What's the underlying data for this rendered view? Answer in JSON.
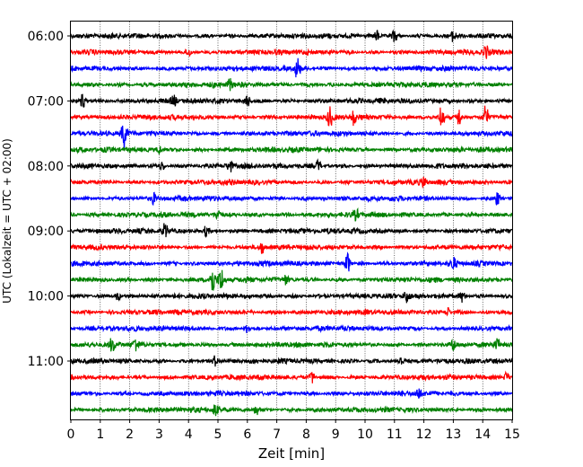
{
  "chart_data": {
    "type": "line",
    "title": "",
    "xlabel": "Zeit  [min]",
    "ylabel": "UTC (Lokalzeit = UTC + 02:00)",
    "xlim": [
      0,
      15
    ],
    "x_ticks": [
      "0",
      "1",
      "2",
      "3",
      "4",
      "5",
      "6",
      "7",
      "8",
      "9",
      "10",
      "11",
      "12",
      "13",
      "14",
      "15"
    ],
    "y_tick_labels": [
      "06:00",
      "07:00",
      "08:00",
      "09:00",
      "10:00",
      "11:00"
    ],
    "grid": "vertical dotted lines at each minute",
    "legend": "none",
    "trace_start": "06:00",
    "trace_interval_min": 15,
    "trace_colors": [
      "#000000",
      "#ff0000",
      "#0000ff",
      "#008000"
    ],
    "traces": [
      {
        "label": "06:00",
        "events": [
          [
            10.4,
            1.5
          ],
          [
            11.0,
            1.8
          ],
          [
            13.0,
            1.5
          ]
        ]
      },
      {
        "label": "06:15",
        "events": [
          [
            4.0,
            1.2
          ],
          [
            14.1,
            1.8
          ]
        ]
      },
      {
        "label": "06:30",
        "events": [
          [
            7.7,
            3.0
          ]
        ]
      },
      {
        "label": "06:45",
        "events": [
          [
            5.4,
            1.5
          ]
        ]
      },
      {
        "label": "07:00",
        "events": [
          [
            0.4,
            2.2
          ],
          [
            3.5,
            1.3
          ],
          [
            6.0,
            1.6
          ]
        ]
      },
      {
        "label": "07:15",
        "events": [
          [
            8.8,
            2.8
          ],
          [
            9.6,
            2.0
          ],
          [
            12.6,
            3.8
          ],
          [
            13.2,
            2.4
          ],
          [
            14.1,
            3.2
          ]
        ]
      },
      {
        "label": "07:30",
        "events": [
          [
            1.8,
            4.0
          ]
        ]
      },
      {
        "label": "07:45",
        "events": [
          [
            3.0,
            1.1
          ]
        ]
      },
      {
        "label": "08:00",
        "events": [
          [
            3.1,
            1.3
          ],
          [
            5.4,
            1.6
          ],
          [
            8.4,
            1.4
          ]
        ]
      },
      {
        "label": "08:15",
        "events": [
          [
            12.0,
            1.3
          ]
        ]
      },
      {
        "label": "08:30",
        "events": [
          [
            2.8,
            1.4
          ],
          [
            14.5,
            2.0
          ]
        ]
      },
      {
        "label": "08:45",
        "events": [
          [
            5.0,
            1.5
          ],
          [
            9.7,
            1.3
          ]
        ]
      },
      {
        "label": "09:00",
        "events": [
          [
            3.2,
            2.0
          ],
          [
            4.6,
            1.3
          ]
        ]
      },
      {
        "label": "09:15",
        "events": [
          [
            6.5,
            1.4
          ]
        ]
      },
      {
        "label": "09:30",
        "events": [
          [
            9.4,
            3.2
          ],
          [
            13.0,
            1.5
          ]
        ]
      },
      {
        "label": "09:45",
        "events": [
          [
            4.8,
            4.0
          ],
          [
            5.1,
            3.2
          ],
          [
            7.3,
            1.3
          ]
        ]
      },
      {
        "label": "10:00",
        "events": [
          [
            1.6,
            1.3
          ],
          [
            11.4,
            1.6
          ],
          [
            13.3,
            1.5
          ]
        ]
      },
      {
        "label": "10:15",
        "events": [
          [
            12.8,
            1.4
          ]
        ]
      },
      {
        "label": "10:30",
        "events": [
          [
            6.0,
            1.1
          ]
        ]
      },
      {
        "label": "10:45",
        "events": [
          [
            1.4,
            1.6
          ],
          [
            2.2,
            1.8
          ],
          [
            13.0,
            1.6
          ],
          [
            14.5,
            1.5
          ]
        ]
      },
      {
        "label": "11:00",
        "events": [
          [
            4.9,
            1.2
          ],
          [
            11.2,
            1.2
          ]
        ]
      },
      {
        "label": "11:15",
        "events": [
          [
            8.2,
            1.6
          ],
          [
            14.8,
            1.3
          ]
        ]
      },
      {
        "label": "11:30",
        "events": [
          [
            11.8,
            1.6
          ]
        ]
      },
      {
        "label": "11:45",
        "events": [
          [
            4.9,
            1.6
          ],
          [
            6.3,
            1.4
          ]
        ]
      }
    ]
  }
}
